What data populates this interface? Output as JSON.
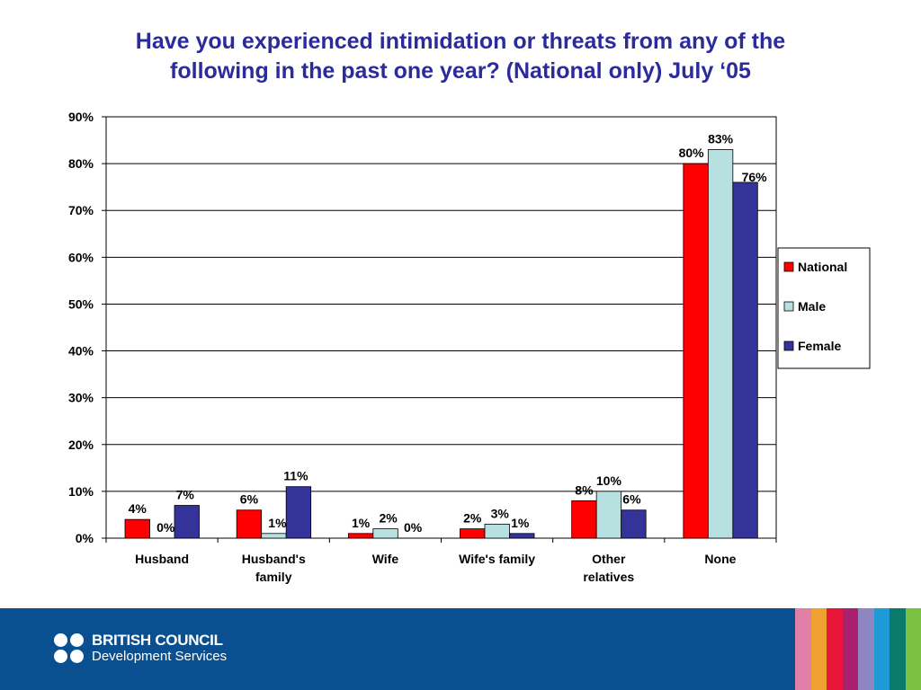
{
  "slide": {
    "title_line1": "Have you experienced intimidation or threats from any of the",
    "title_line2": "following in the past one year? (National only) July ‘05"
  },
  "chart_data": {
    "type": "bar",
    "categories": [
      [
        "Husband"
      ],
      [
        "Husband's",
        "family"
      ],
      [
        "Wife"
      ],
      [
        "Wife's family"
      ],
      [
        "Other",
        "relatives"
      ],
      [
        "None"
      ]
    ],
    "series": [
      {
        "name": "National",
        "color": "#ff0000",
        "values": [
          4,
          6,
          1,
          2,
          8,
          80
        ],
        "labels": [
          "4%",
          "6%",
          "1%",
          "2%",
          "8%",
          "80%"
        ]
      },
      {
        "name": "Male",
        "color": "#b7e0e0",
        "values": [
          0,
          1,
          2,
          3,
          10,
          83
        ],
        "labels": [
          "0%",
          "1%",
          "2%",
          "3%",
          "10%",
          "83%"
        ]
      },
      {
        "name": "Female",
        "color": "#333399",
        "values": [
          7,
          11,
          0,
          1,
          6,
          76
        ],
        "labels": [
          "7%",
          "11%",
          "0%",
          "1%",
          "6%",
          "76%"
        ]
      }
    ],
    "ylim": [
      0,
      90
    ],
    "yticks": [
      "0%",
      "10%",
      "20%",
      "30%",
      "40%",
      "50%",
      "60%",
      "70%",
      "80%",
      "90%"
    ],
    "grid": true,
    "legend_position": "right"
  },
  "footer": {
    "brand_line1": "BRITISH COUNCIL",
    "brand_line2": "Development Services",
    "stripe_colors": [
      "#e07fa8",
      "#f0a030",
      "#e8173a",
      "#a8206e",
      "#8e86c0",
      "#1e9ad6",
      "#0a7a6a",
      "#7cc242"
    ]
  }
}
